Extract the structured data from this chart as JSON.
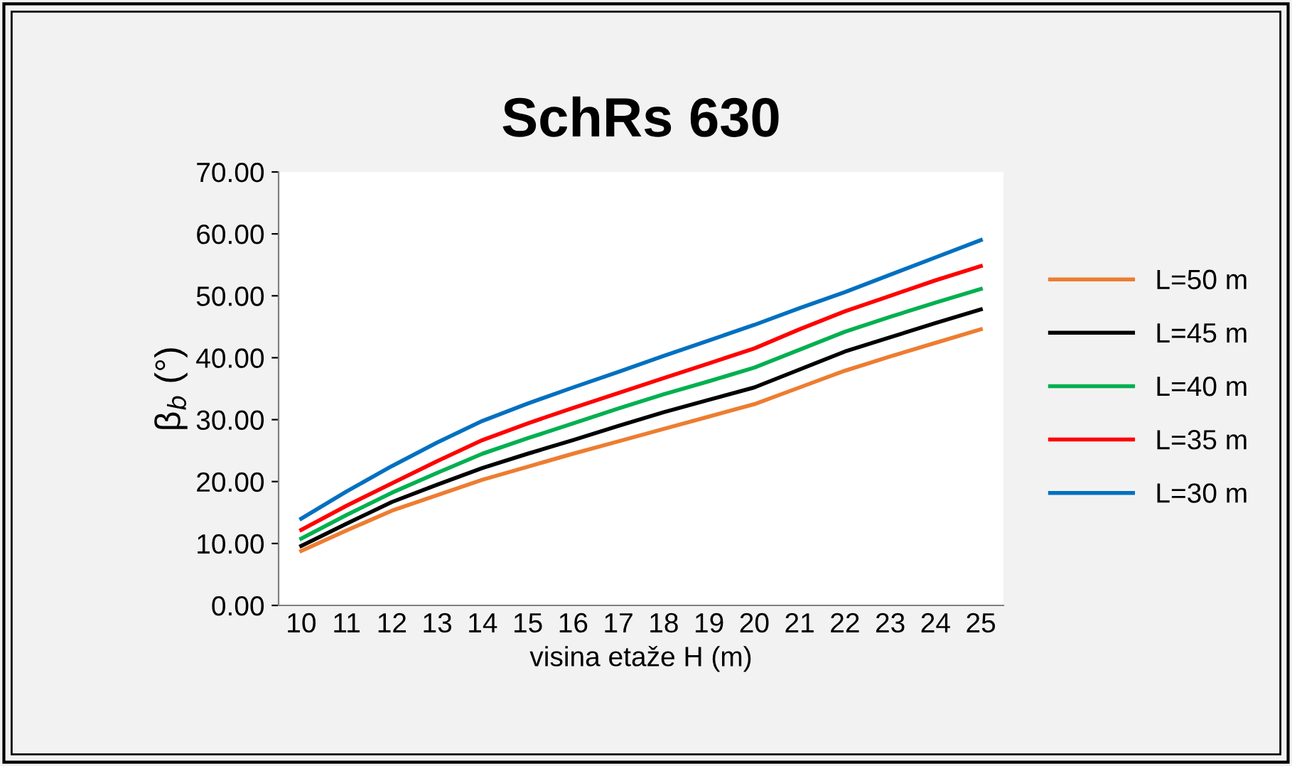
{
  "chart_data": {
    "type": "line",
    "title": "SchRs 630",
    "xlabel": "visina etaže H (m)",
    "ylabel": "β$_{b}$ (°)",
    "categories": [
      "10",
      "11",
      "12",
      "13",
      "14",
      "15",
      "16",
      "17",
      "18",
      "19",
      "20",
      "21",
      "22",
      "23",
      "24",
      "25"
    ],
    "series": [
      {
        "name": "L=50 m",
        "color": "#ed7d31",
        "values": [
          8.8,
          12.1,
          15.3,
          17.8,
          20.3,
          22.4,
          24.5,
          26.5,
          28.5,
          30.5,
          32.5,
          35.2,
          37.9,
          40.2,
          42.4,
          44.6
        ]
      },
      {
        "name": "L=45 m",
        "color": "#000000",
        "values": [
          9.6,
          13.2,
          16.7,
          19.5,
          22.2,
          24.5,
          26.7,
          29.0,
          31.2,
          33.2,
          35.2,
          38.1,
          41.0,
          43.3,
          45.6,
          47.8
        ]
      },
      {
        "name": "L=40 m",
        "color": "#00b050",
        "values": [
          10.8,
          14.6,
          18.2,
          21.4,
          24.5,
          27.0,
          29.4,
          31.8,
          34.1,
          36.2,
          38.4,
          41.3,
          44.2,
          46.6,
          48.9,
          51.1
        ]
      },
      {
        "name": "L=35 m",
        "color": "#ff0000",
        "values": [
          12.2,
          16.1,
          19.7,
          23.3,
          26.7,
          29.4,
          31.9,
          34.3,
          36.7,
          39.1,
          41.5,
          44.6,
          47.5,
          50.0,
          52.5,
          54.8
        ]
      },
      {
        "name": "L=30 m",
        "color": "#0070c0",
        "values": [
          14.0,
          18.4,
          22.5,
          26.3,
          29.8,
          32.6,
          35.2,
          37.7,
          40.3,
          42.8,
          45.3,
          48.0,
          50.6,
          53.4,
          56.2,
          59.0
        ]
      }
    ],
    "ylim": [
      0,
      70
    ],
    "yticks": [
      {
        "value": 0,
        "label": "0.00"
      },
      {
        "value": 10,
        "label": "10.00"
      },
      {
        "value": 20,
        "label": "20.00"
      },
      {
        "value": 30,
        "label": "30.00"
      },
      {
        "value": 40,
        "label": "40.00"
      },
      {
        "value": 50,
        "label": "50.00"
      },
      {
        "value": 60,
        "label": "60.00"
      },
      {
        "value": 70,
        "label": "70.00"
      }
    ],
    "grid": false,
    "legend": "right",
    "marker": "none",
    "line_style": "solid"
  }
}
